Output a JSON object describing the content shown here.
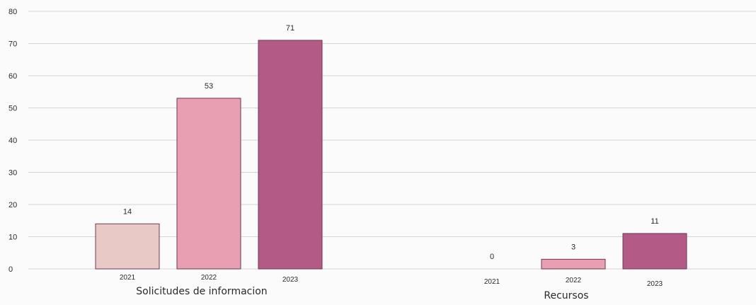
{
  "chart_data": {
    "type": "bar",
    "title": "",
    "xlabel": "",
    "ylabel": "",
    "ylim": [
      0,
      80
    ],
    "yticks": [
      0,
      10,
      20,
      30,
      40,
      50,
      60,
      70,
      80
    ],
    "grid": true,
    "groups": [
      {
        "label": "Solicitudes de informacion",
        "categories": [
          "2021",
          "2022",
          "2023"
        ],
        "values": [
          14,
          53,
          71
        ]
      },
      {
        "label": "Recursos",
        "categories": [
          "2021",
          "2022",
          "2023"
        ],
        "values": [
          0,
          3,
          11
        ]
      }
    ],
    "bar_colors": {
      "2021": "#e8c9c6",
      "2022": "#e89fb2",
      "2023": "#b35a86"
    }
  }
}
